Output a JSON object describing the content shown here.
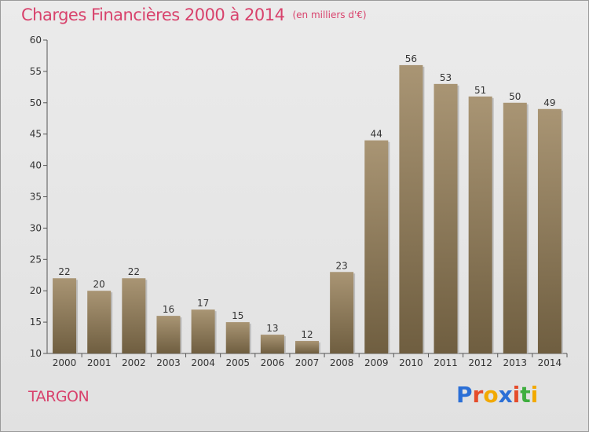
{
  "title": "Charges Financières 2000 à 2014",
  "unit": "(en milliers d'€)",
  "commune": "TARGON",
  "logo": {
    "text": "Proxiti",
    "letters": [
      {
        "ch": "P",
        "color": "#2b6fd6"
      },
      {
        "ch": "r",
        "color": "#e54b2a"
      },
      {
        "ch": "o",
        "color": "#f2a900"
      },
      {
        "ch": "x",
        "color": "#2b6fd6"
      },
      {
        "ch": "i",
        "color": "#e54b2a"
      },
      {
        "ch": "t",
        "color": "#3fae3f"
      },
      {
        "ch": "i",
        "color": "#f2a900"
      }
    ]
  },
  "colors": {
    "title": "#d8426c",
    "bar_top": "#a99574",
    "bar_bottom": "#6f5e40",
    "axis": "#555555"
  },
  "chart_data": {
    "type": "bar",
    "categories": [
      "2000",
      "2001",
      "2002",
      "2003",
      "2004",
      "2005",
      "2006",
      "2007",
      "2008",
      "2009",
      "2010",
      "2011",
      "2012",
      "2013",
      "2014"
    ],
    "values": [
      22,
      20,
      22,
      16,
      17,
      15,
      13,
      12,
      23,
      44,
      56,
      53,
      51,
      50,
      49
    ],
    "ylim": [
      10,
      60
    ],
    "yticks": [
      10,
      15,
      20,
      25,
      30,
      35,
      40,
      45,
      50,
      55,
      60
    ],
    "grid": false,
    "data_labels": true
  }
}
